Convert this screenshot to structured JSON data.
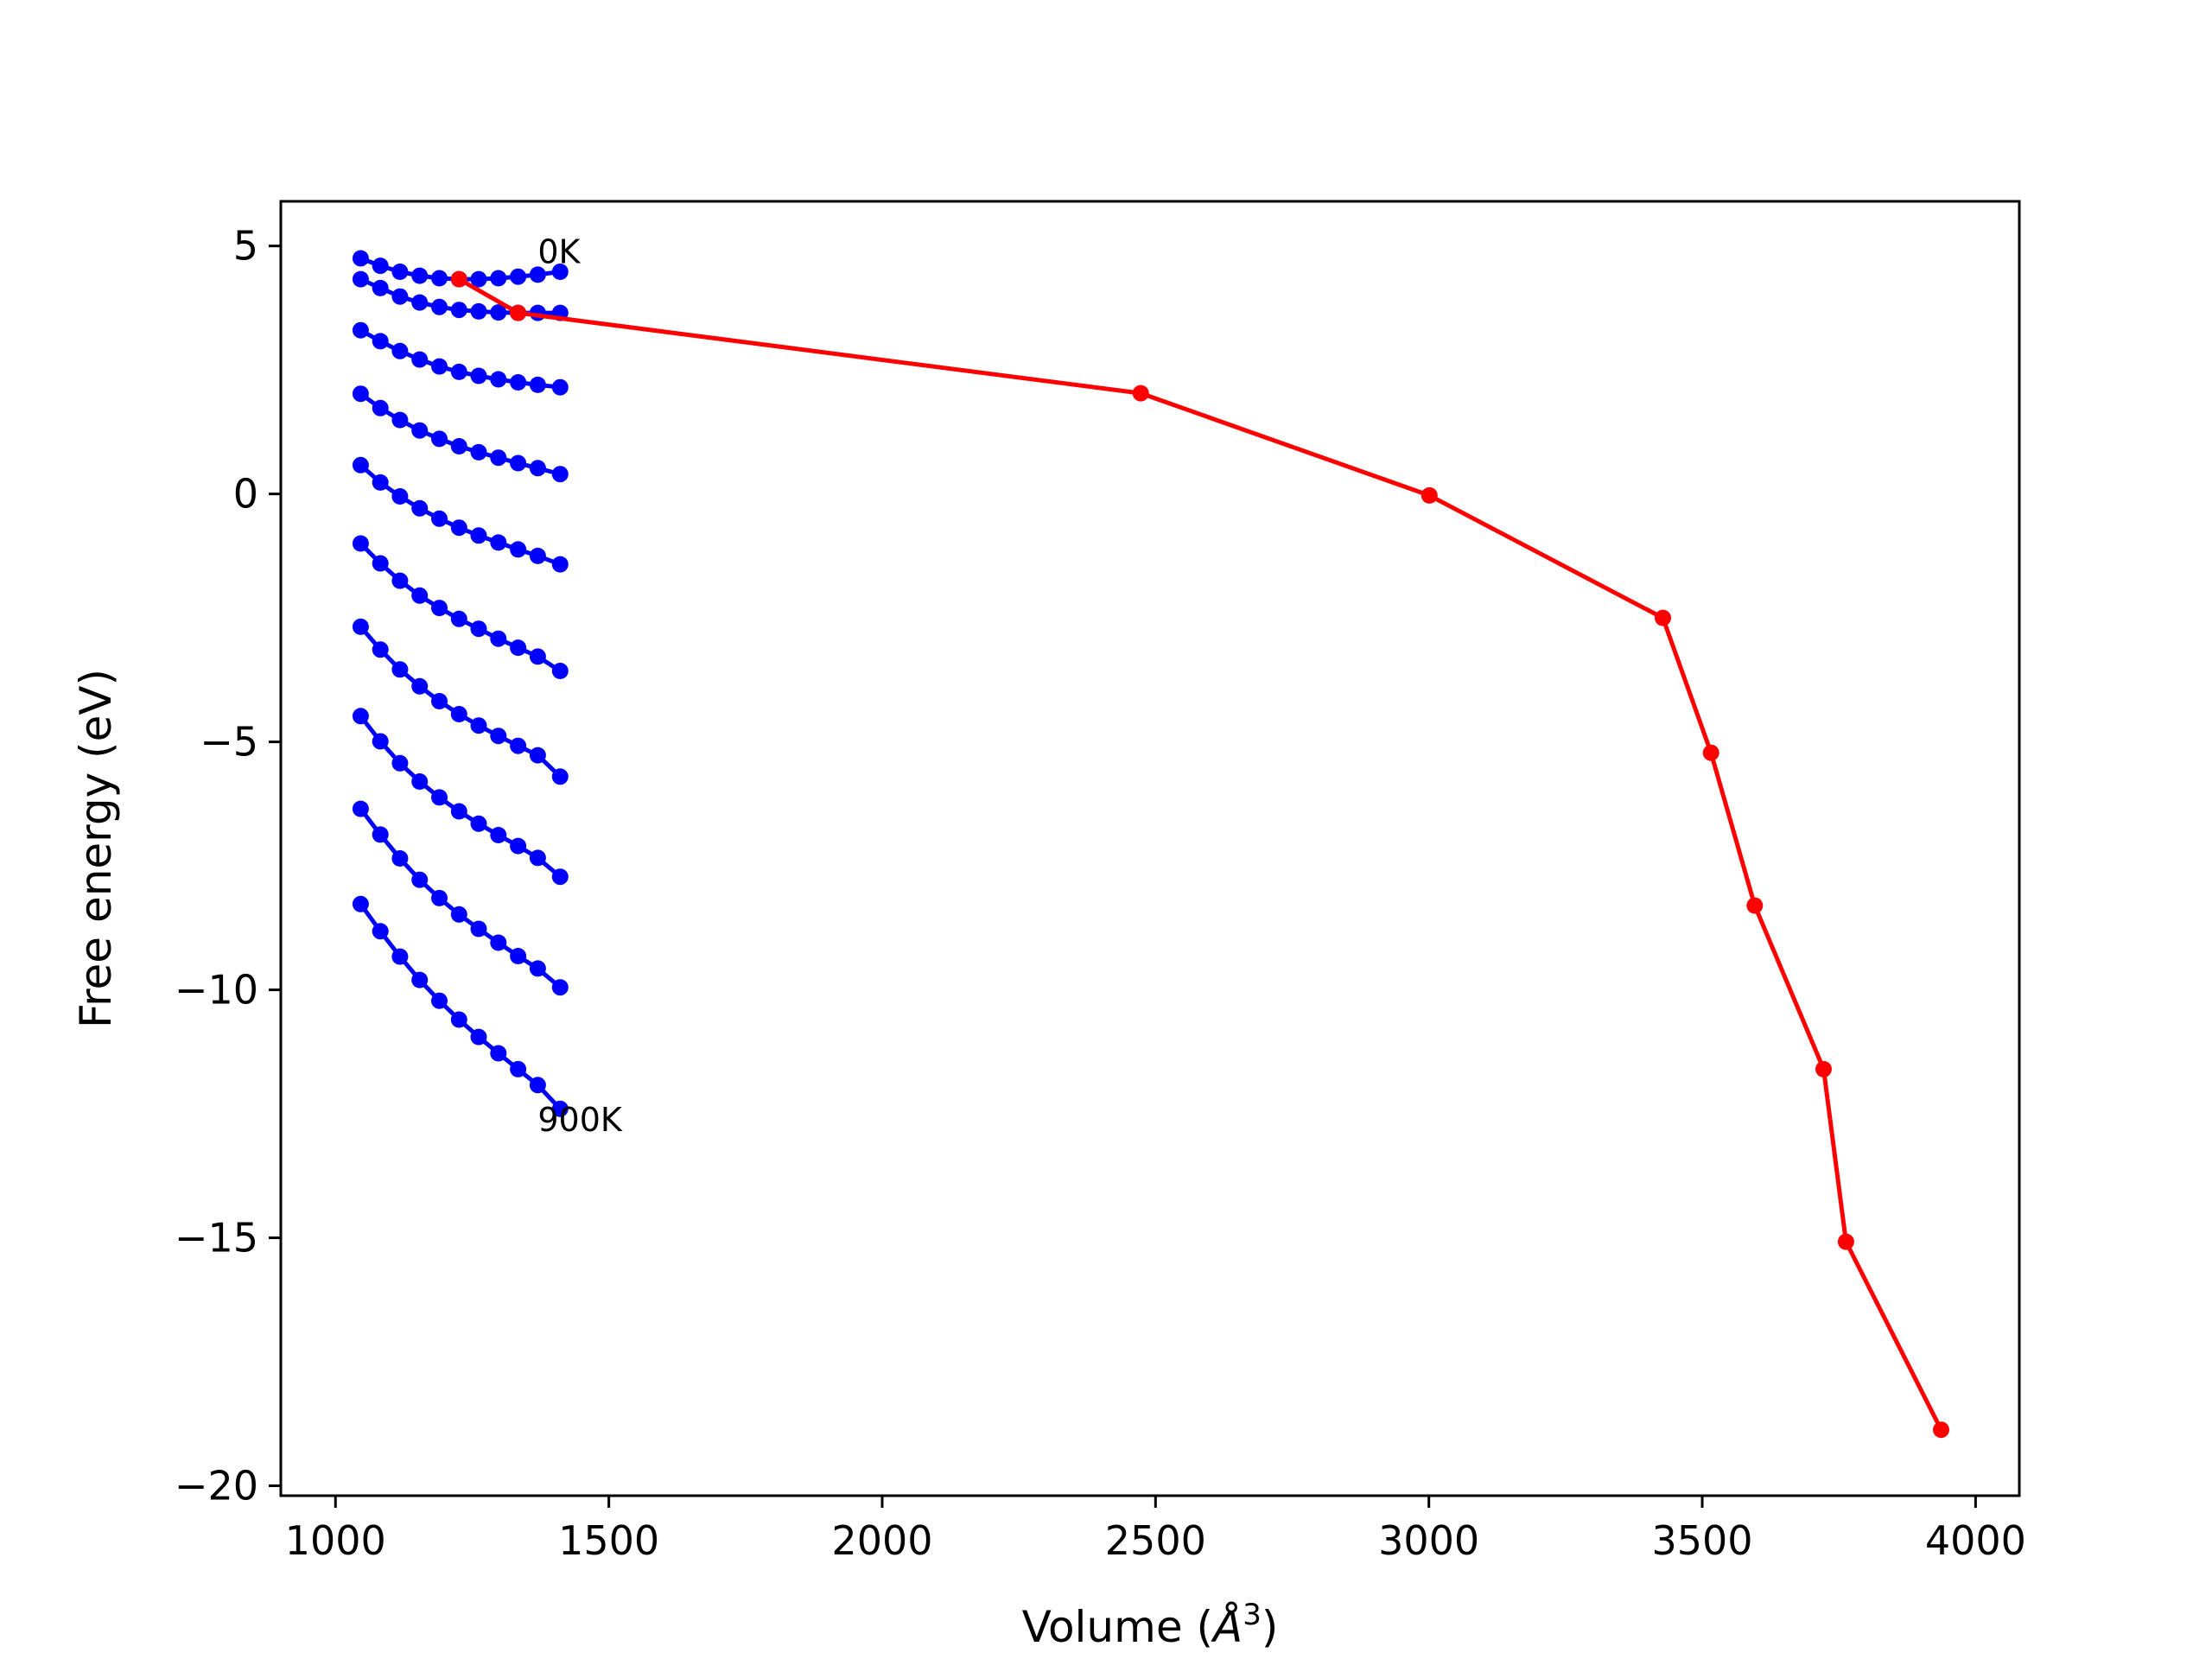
{
  "chart_data": {
    "type": "line",
    "xlabel_main": "Volume (",
    "xlabel_sym": "Å",
    "xlabel_sup": "3",
    "xlabel_close": ")",
    "ylabel": "Free energy (eV)",
    "xlim": [
      900,
      4080
    ],
    "ylim": [
      -20.2,
      5.9
    ],
    "xticks": [
      1000,
      1500,
      2000,
      2500,
      3000,
      3500,
      4000
    ],
    "xtick_labels": [
      "1000",
      "1500",
      "2000",
      "2500",
      "3000",
      "3500",
      "4000"
    ],
    "yticks": [
      5,
      0,
      -5,
      -10,
      -15,
      -20
    ],
    "ytick_labels": [
      "5",
      "0",
      "−5",
      "−10",
      "−15",
      "−20"
    ],
    "annotations": [
      {
        "text": "0K",
        "x": 1370,
        "y": 4.65
      },
      {
        "text": "900K",
        "x": 1370,
        "y": -12.85
      }
    ],
    "colors": {
      "curves": "#0000ff",
      "minima": "#ff0000",
      "axes": "#000000"
    },
    "volumes": [
      1046,
      1082,
      1118,
      1154,
      1190,
      1226,
      1262,
      1298,
      1334,
      1370,
      1411
    ],
    "series": [
      {
        "values": [
          4.75,
          4.6,
          4.48,
          4.4,
          4.35,
          4.33,
          4.33,
          4.35,
          4.38,
          4.42,
          4.48
        ]
      },
      {
        "values": [
          4.33,
          4.15,
          3.98,
          3.86,
          3.77,
          3.71,
          3.68,
          3.66,
          3.65,
          3.65,
          3.65
        ]
      },
      {
        "values": [
          3.3,
          3.08,
          2.88,
          2.71,
          2.57,
          2.46,
          2.38,
          2.31,
          2.25,
          2.2,
          2.15
        ]
      },
      {
        "values": [
          2.02,
          1.73,
          1.49,
          1.28,
          1.11,
          0.96,
          0.84,
          0.73,
          0.62,
          0.52,
          0.4
        ]
      },
      {
        "values": [
          0.58,
          0.23,
          -0.05,
          -0.29,
          -0.5,
          -0.68,
          -0.84,
          -0.98,
          -1.12,
          -1.25,
          -1.42
        ]
      },
      {
        "values": [
          -1.0,
          -1.4,
          -1.75,
          -2.05,
          -2.3,
          -2.52,
          -2.72,
          -2.92,
          -3.1,
          -3.28,
          -3.57
        ]
      },
      {
        "values": [
          -2.68,
          -3.14,
          -3.54,
          -3.88,
          -4.18,
          -4.44,
          -4.67,
          -4.88,
          -5.08,
          -5.27,
          -5.7
        ]
      },
      {
        "values": [
          -4.48,
          -4.99,
          -5.43,
          -5.8,
          -6.12,
          -6.4,
          -6.65,
          -6.88,
          -7.1,
          -7.34,
          -7.72
        ]
      },
      {
        "values": [
          -6.35,
          -6.87,
          -7.35,
          -7.78,
          -8.15,
          -8.48,
          -8.77,
          -9.05,
          -9.32,
          -9.57,
          -9.95
        ]
      },
      {
        "values": [
          -8.27,
          -8.82,
          -9.33,
          -9.8,
          -10.22,
          -10.6,
          -10.95,
          -11.28,
          -11.6,
          -11.92,
          -12.4
        ]
      }
    ],
    "minima": {
      "x": [
        1226,
        1334,
        2473,
        3001,
        3428,
        3516,
        3596,
        3722,
        3763,
        3937
      ],
      "y": [
        4.33,
        3.65,
        2.03,
        -0.03,
        -2.5,
        -5.22,
        -8.3,
        -11.6,
        -15.08,
        -18.87
      ]
    }
  }
}
